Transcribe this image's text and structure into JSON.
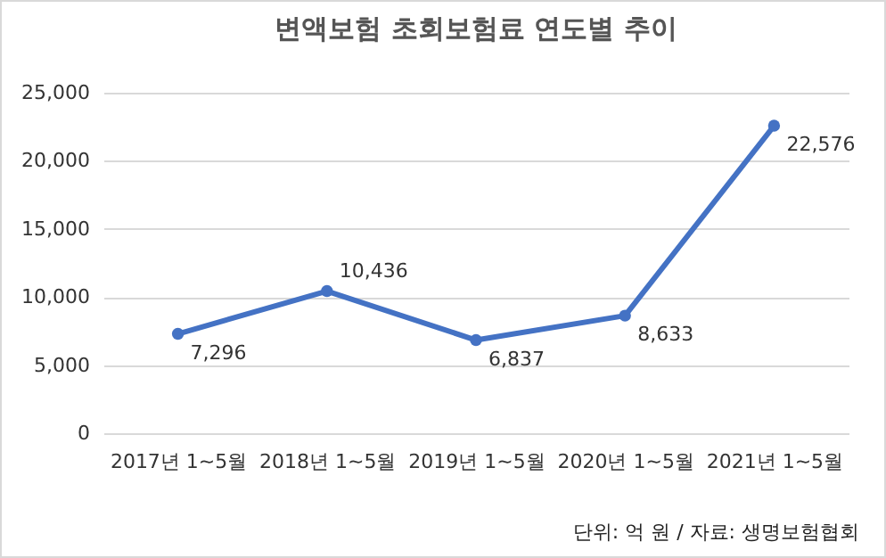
{
  "chart_data": {
    "type": "line",
    "title": "변액보험 초회보험료 연도별 추이",
    "categories": [
      "2017년 1~5월",
      "2018년 1~5월",
      "2019년 1~5월",
      "2020년 1~5월",
      "2021년 1~5월"
    ],
    "series": [
      {
        "color": "#4472c4",
        "values": [
          7296,
          10436,
          6837,
          8633,
          22576
        ],
        "value_labels": [
          "7,296",
          "10,436",
          "6,837",
          "8,633",
          "22,576"
        ]
      }
    ],
    "ylim": [
      0,
      25000
    ],
    "yticks": [
      0,
      {
        "value": 5000,
        "label": "5,000"
      },
      {
        "value": 10000,
        "label": "10,000"
      },
      {
        "value": 15000,
        "label": "15,000"
      },
      {
        "value": 20000,
        "label": "20,000"
      },
      {
        "value": 25000,
        "label": "25,000"
      }
    ],
    "grid": "y",
    "marker": "circle",
    "legend": false,
    "annotations": [
      "단위: 억 원 / 자료: 생명보험협회"
    ]
  }
}
